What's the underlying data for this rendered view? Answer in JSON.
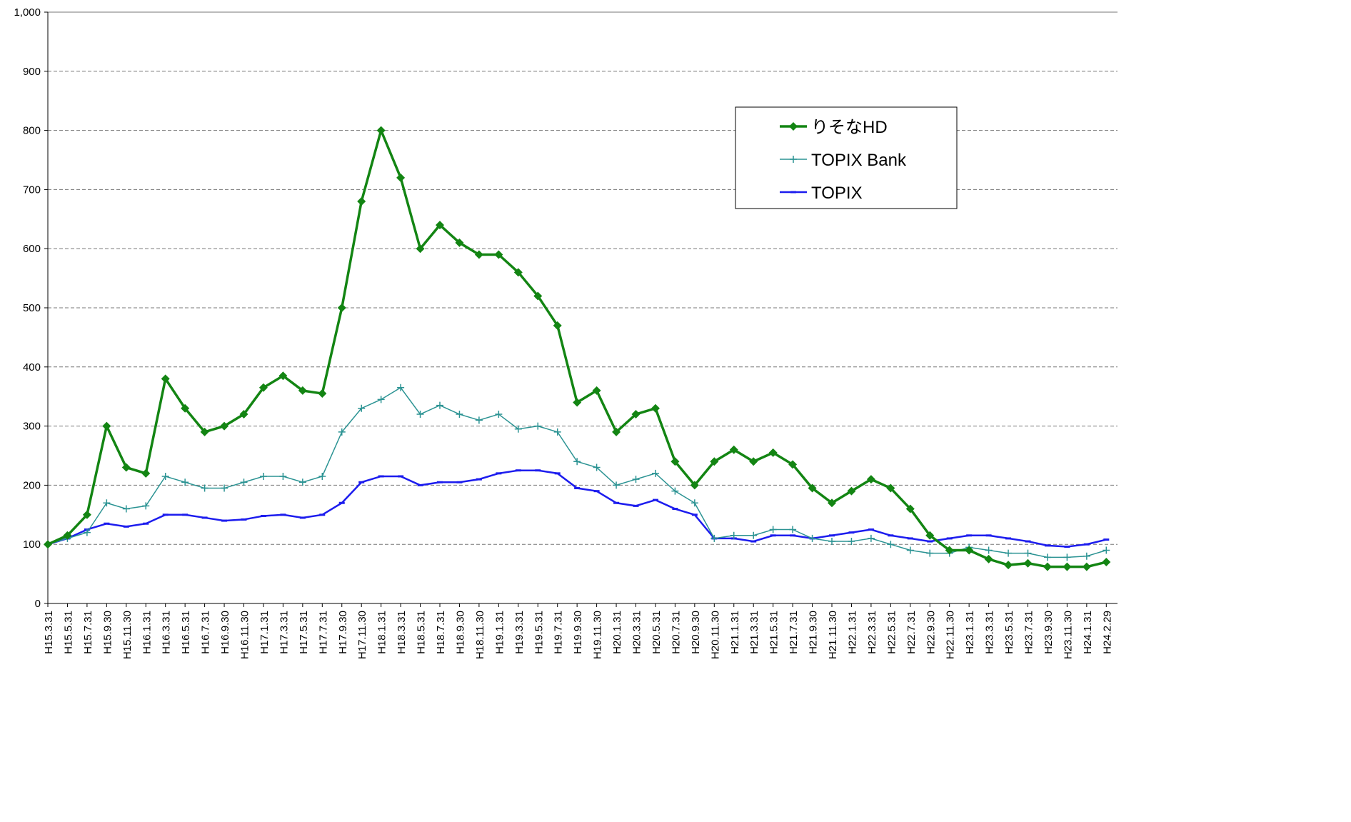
{
  "chart_data": {
    "type": "line",
    "categories": [
      "H15.3.31",
      "H15.5.31",
      "H15.7.31",
      "H15.9.30",
      "H15.11.30",
      "H16.1.31",
      "H16.3.31",
      "H16.5.31",
      "H16.7.31",
      "H16.9.30",
      "H16.11.30",
      "H17.1.31",
      "H17.3.31",
      "H17.5.31",
      "H17.7.31",
      "H17.9.30",
      "H17.11.30",
      "H18.1.31",
      "H18.3.31",
      "H18.5.31",
      "H18.7.31",
      "H18.9.30",
      "H18.11.30",
      "H19.1.31",
      "H19.3.31",
      "H19.5.31",
      "H19.7.31",
      "H19.9.30",
      "H19.11.30",
      "H20.1.31",
      "H20.3.31",
      "H20.5.31",
      "H20.7.31",
      "H20.9.30",
      "H20.11.30",
      "H21.1.31",
      "H21.3.31",
      "H21.5.31",
      "H21.7.31",
      "H21.9.30",
      "H21.11.30",
      "H22.1.31",
      "H22.3.31",
      "H22.5.31",
      "H22.7.31",
      "H22.9.30",
      "H22.11.30",
      "H23.1.31",
      "H23.3.31",
      "H23.5.31",
      "H23.7.31",
      "H23.9.30",
      "H23.11.30",
      "H24.1.31",
      "H24.2.29"
    ],
    "series": [
      {
        "name": "りそなHD",
        "color": "#138513",
        "marker": "diamond",
        "values": [
          100,
          115,
          150,
          300,
          230,
          220,
          380,
          330,
          290,
          300,
          320,
          365,
          385,
          360,
          355,
          500,
          680,
          800,
          720,
          600,
          640,
          610,
          590,
          590,
          560,
          520,
          470,
          340,
          360,
          290,
          320,
          330,
          240,
          200,
          240,
          260,
          240,
          255,
          235,
          195,
          170,
          190,
          210,
          195,
          160,
          115,
          90,
          90,
          75,
          65,
          68,
          62,
          62,
          62,
          70
        ]
      },
      {
        "name": "TOPIX Bank",
        "color": "#2b9393",
        "marker": "plus",
        "values": [
          100,
          110,
          120,
          170,
          160,
          165,
          215,
          205,
          195,
          195,
          205,
          215,
          215,
          205,
          215,
          290,
          330,
          345,
          365,
          320,
          335,
          320,
          310,
          320,
          295,
          300,
          290,
          240,
          230,
          200,
          210,
          220,
          190,
          170,
          110,
          115,
          115,
          125,
          125,
          110,
          105,
          105,
          110,
          100,
          90,
          85,
          85,
          95,
          90,
          85,
          85,
          78,
          78,
          80,
          90
        ]
      },
      {
        "name": "TOPIX",
        "color": "#1c1cee",
        "marker": "dash",
        "values": [
          100,
          110,
          125,
          135,
          130,
          135,
          150,
          150,
          145,
          140,
          142,
          148,
          150,
          145,
          150,
          170,
          205,
          215,
          215,
          200,
          205,
          205,
          210,
          220,
          225,
          225,
          220,
          195,
          190,
          170,
          165,
          175,
          160,
          150,
          110,
          110,
          105,
          115,
          115,
          110,
          115,
          120,
          125,
          115,
          110,
          105,
          110,
          115,
          115,
          110,
          105,
          98,
          96,
          100,
          108
        ]
      }
    ],
    "ylim": [
      0,
      1000
    ],
    "yticks": [
      0,
      100,
      200,
      300,
      400,
      500,
      600,
      700,
      800,
      900,
      {
        "value": 1000,
        "label": "1,000"
      }
    ],
    "grid": true,
    "legend": "upper right"
  }
}
